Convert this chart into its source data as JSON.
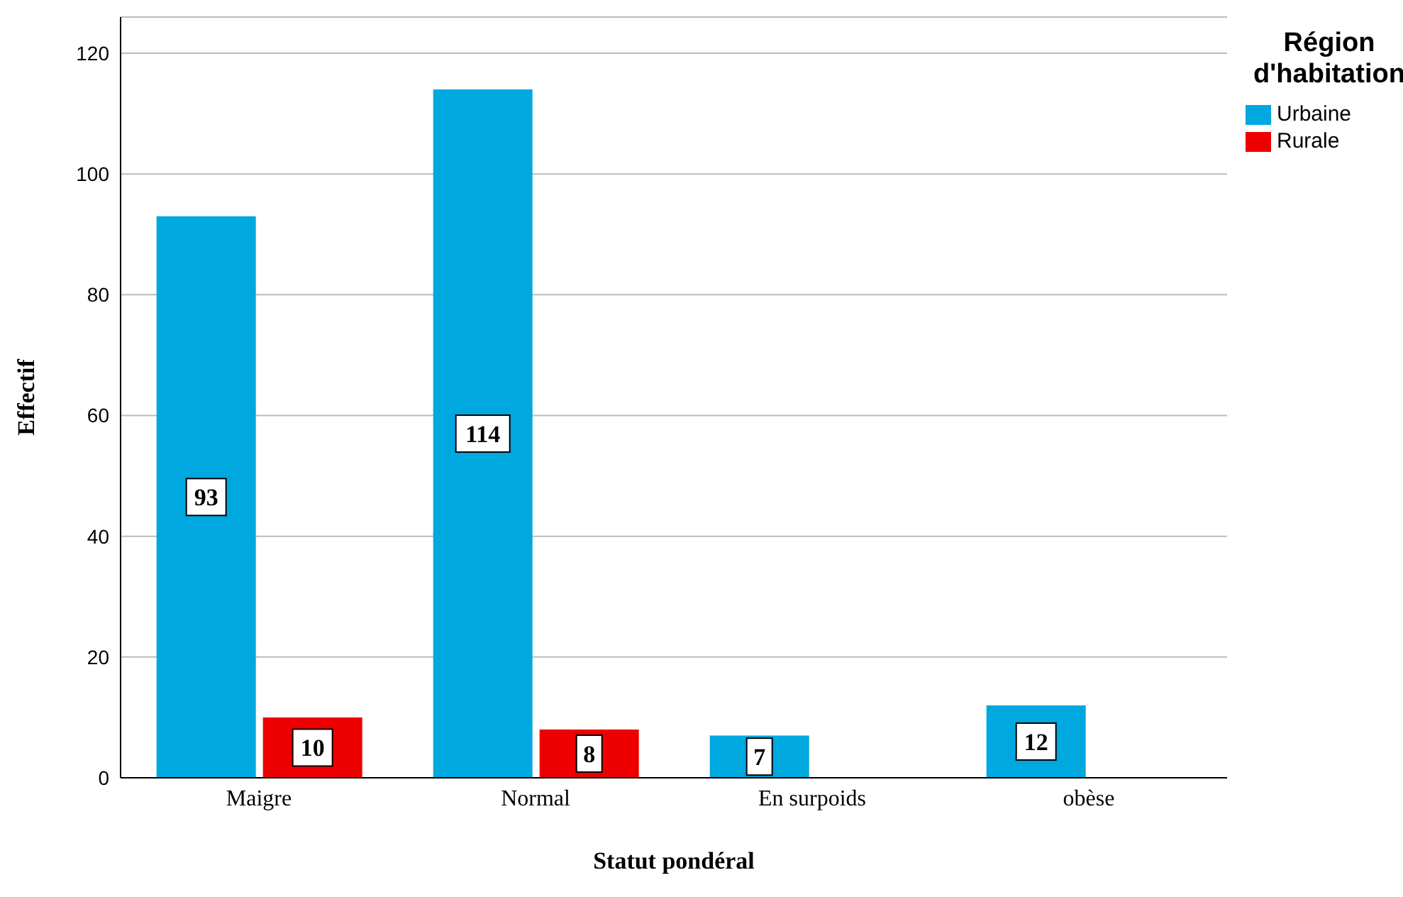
{
  "chart_data": {
    "type": "bar",
    "xlabel": "Statut pondéral",
    "ylabel": "Effectif",
    "legend_title": "Région d'habitation",
    "categories": [
      "Maigre",
      "Normal",
      "En surpoids",
      "obèse"
    ],
    "series": [
      {
        "name": "Urbaine",
        "color": "#00a8e0",
        "values": [
          93,
          114,
          7,
          12
        ]
      },
      {
        "name": "Rurale",
        "color": "#ee0000",
        "values": [
          10,
          8,
          null,
          null
        ]
      }
    ],
    "ylim": [
      0,
      126
    ],
    "yticks": [
      0,
      20,
      40,
      60,
      80,
      100,
      120
    ],
    "grid": "y",
    "legend": "top right",
    "data_labels": true
  }
}
